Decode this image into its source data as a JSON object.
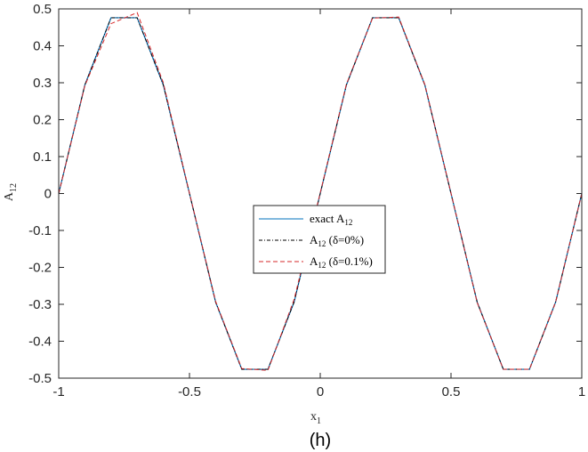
{
  "chart_data": {
    "type": "line",
    "xlabel": "x",
    "xlabel_sub": "1",
    "ylabel": "A",
    "ylabel_sub": "12",
    "caption": "(h)",
    "xlim": [
      -1,
      1
    ],
    "ylim": [
      -0.5,
      0.5
    ],
    "xticks": [
      -1,
      -0.5,
      0,
      0.5,
      1
    ],
    "xtick_labels": [
      "-1",
      "-0.5",
      "0",
      "0.5",
      "1"
    ],
    "yticks": [
      -0.5,
      -0.4,
      -0.3,
      -0.2,
      -0.1,
      0,
      0.1,
      0.2,
      0.3,
      0.4,
      0.5
    ],
    "ytick_labels": [
      "-0.5",
      "-0.4",
      "-0.3",
      "-0.2",
      "-0.1",
      "0",
      "0.1",
      "0.2",
      "0.3",
      "0.4",
      "0.5"
    ],
    "legend_position": "center",
    "x": [
      -1,
      -0.9,
      -0.8,
      -0.7,
      -0.6,
      -0.5,
      -0.4,
      -0.3,
      -0.2,
      -0.1,
      0,
      0.1,
      0.2,
      0.3,
      0.4,
      0.5,
      0.6,
      0.7,
      0.8,
      0.9,
      1
    ],
    "series": [
      {
        "name_main": "exact A",
        "name_sub": "12",
        "name_tail": "",
        "color": "#0072BD",
        "style": "solid",
        "values": [
          0,
          0.294,
          0.476,
          0.476,
          0.294,
          0,
          -0.294,
          -0.476,
          -0.476,
          -0.294,
          0,
          0.294,
          0.476,
          0.476,
          0.294,
          0,
          -0.294,
          -0.476,
          -0.476,
          -0.294,
          0
        ]
      },
      {
        "name_main": "A",
        "name_sub": "12",
        "name_tail": " (δ=0%)",
        "color": "#000000",
        "style": "dashdot",
        "values": [
          0,
          0.294,
          0.476,
          0.476,
          0.294,
          0,
          -0.294,
          -0.476,
          -0.476,
          -0.294,
          0,
          0.294,
          0.476,
          0.476,
          0.294,
          0,
          -0.294,
          -0.476,
          -0.476,
          -0.294,
          0
        ]
      },
      {
        "name_main": "A",
        "name_sub": "12",
        "name_tail": " (δ=0.1%)",
        "color": "#D62728",
        "style": "dashed",
        "values": [
          0,
          0.292,
          0.46,
          0.49,
          0.3,
          0.001,
          -0.292,
          -0.474,
          -0.479,
          -0.287,
          0.002,
          0.296,
          0.475,
          0.478,
          0.295,
          0.001,
          -0.295,
          -0.476,
          -0.476,
          -0.294,
          0
        ]
      }
    ]
  }
}
